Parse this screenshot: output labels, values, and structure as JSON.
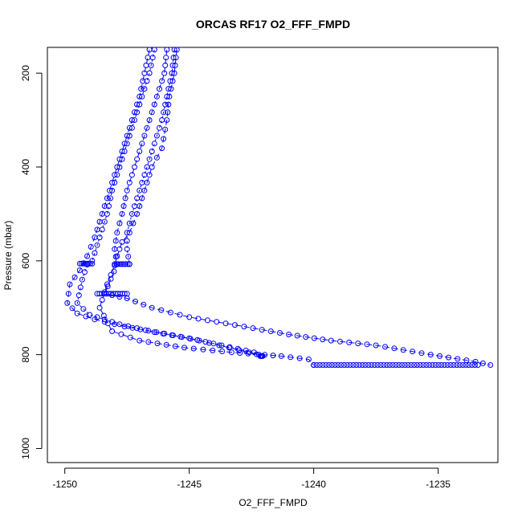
{
  "chart_data": {
    "type": "scatter",
    "title": "ORCAS RF17 O2_FFF_FMPD",
    "xlabel": "O2_FFF_FMPD",
    "ylabel": "Pressure (mbar)",
    "xlim": [
      -1250.7,
      -1232.6
    ],
    "ylim": [
      1030,
      145
    ],
    "y_inverted": true,
    "xticks": [
      -1250,
      -1245,
      -1240,
      -1235
    ],
    "yticks": [
      200,
      400,
      600,
      800,
      1000
    ],
    "grid": false,
    "legend": "none",
    "series_color": "#0000ff",
    "marker": "open-circle",
    "line_style": "dashed",
    "series": [
      {
        "points": [
          [
            -1246.6,
            150
          ],
          [
            -1246.8,
            200
          ],
          [
            -1247.0,
            250
          ],
          [
            -1247.3,
            300
          ],
          [
            -1247.6,
            350
          ],
          [
            -1247.9,
            400
          ],
          [
            -1248.2,
            450
          ],
          [
            -1248.5,
            500
          ],
          [
            -1248.8,
            550
          ],
          [
            -1249.1,
            590
          ],
          [
            -1249.4,
            620
          ],
          [
            -1249.8,
            650
          ],
          [
            -1249.9,
            690
          ],
          [
            -1249.5,
            712
          ],
          [
            -1248.8,
            725
          ],
          [
            -1247.6,
            740
          ],
          [
            -1246.0,
            755
          ],
          [
            -1244.6,
            770
          ],
          [
            -1243.4,
            785
          ],
          [
            -1242.2,
            800
          ]
        ]
      },
      {
        "points": [
          [
            -1246.4,
            150
          ],
          [
            -1246.6,
            200
          ],
          [
            -1246.9,
            250
          ],
          [
            -1247.2,
            300
          ],
          [
            -1247.5,
            350
          ],
          [
            -1247.8,
            400
          ],
          [
            -1248.1,
            450
          ],
          [
            -1248.3,
            500
          ],
          [
            -1248.6,
            550
          ],
          [
            -1248.9,
            600
          ],
          [
            -1249.1,
            608
          ],
          [
            -1249.3,
            640
          ],
          [
            -1249.5,
            690
          ],
          [
            -1249.0,
            715
          ],
          [
            -1247.8,
            735
          ],
          [
            -1246.4,
            752
          ],
          [
            -1245.0,
            765
          ],
          [
            -1243.7,
            780
          ],
          [
            -1242.4,
            795
          ],
          [
            -1242.1,
            803
          ]
        ]
      },
      {
        "points": [
          [
            -1245.9,
            150
          ],
          [
            -1246.0,
            200
          ],
          [
            -1246.3,
            250
          ],
          [
            -1246.6,
            300
          ],
          [
            -1246.9,
            350
          ],
          [
            -1247.2,
            400
          ],
          [
            -1247.5,
            450
          ],
          [
            -1247.7,
            500
          ],
          [
            -1247.9,
            540
          ],
          [
            -1248.0,
            575
          ],
          [
            -1247.9,
            607
          ],
          [
            -1248.4,
            670
          ],
          [
            -1247.5,
            680
          ],
          [
            -1246.5,
            700
          ],
          [
            -1245.0,
            720
          ],
          [
            -1242.8,
            740
          ],
          [
            -1241.0,
            757
          ],
          [
            -1239.3,
            770
          ],
          [
            -1237.5,
            780
          ],
          [
            -1235.3,
            800
          ],
          [
            -1233.5,
            815
          ],
          [
            -1232.9,
            822
          ]
        ]
      },
      {
        "points": [
          [
            -1245.6,
            150
          ],
          [
            -1245.7,
            200
          ],
          [
            -1245.9,
            250
          ],
          [
            -1246.1,
            300
          ],
          [
            -1246.4,
            350
          ],
          [
            -1246.7,
            400
          ],
          [
            -1247.0,
            450
          ],
          [
            -1247.3,
            500
          ],
          [
            -1247.5,
            540
          ],
          [
            -1247.5,
            575
          ],
          [
            -1247.4,
            607
          ]
        ]
      },
      {
        "points": [
          [
            -1245.5,
            150
          ],
          [
            -1245.6,
            200
          ],
          [
            -1245.8,
            250
          ],
          [
            -1245.9,
            300
          ],
          [
            -1246.1,
            360
          ],
          [
            -1246.5,
            400
          ],
          [
            -1246.8,
            450
          ],
          [
            -1247.1,
            500
          ],
          [
            -1247.4,
            540
          ],
          [
            -1247.7,
            560
          ],
          [
            -1247.9,
            590
          ],
          [
            -1248.0,
            610
          ],
          [
            -1248.3,
            650
          ],
          [
            -1248.6,
            700
          ],
          [
            -1248.1,
            750
          ],
          [
            -1247.0,
            770
          ],
          [
            -1245.2,
            785
          ],
          [
            -1243.3,
            795
          ],
          [
            -1241.3,
            803
          ],
          [
            -1240.2,
            810
          ],
          [
            -1240.0,
            822
          ]
        ]
      }
    ],
    "clusters": [
      {
        "x_from": -1248.7,
        "x_to": -1247.5,
        "y": 670,
        "n": 14
      },
      {
        "x_from": -1249.4,
        "x_to": -1248.9,
        "y": 606,
        "n": 8
      },
      {
        "x_from": -1248.0,
        "x_to": -1247.4,
        "y": 607,
        "n": 9
      },
      {
        "x_from": -1240.0,
        "x_to": -1233.4,
        "y": 822,
        "n": 55
      },
      {
        "x_from": -1242.15,
        "x_to": -1242.05,
        "y": 803,
        "n": 5
      }
    ]
  }
}
